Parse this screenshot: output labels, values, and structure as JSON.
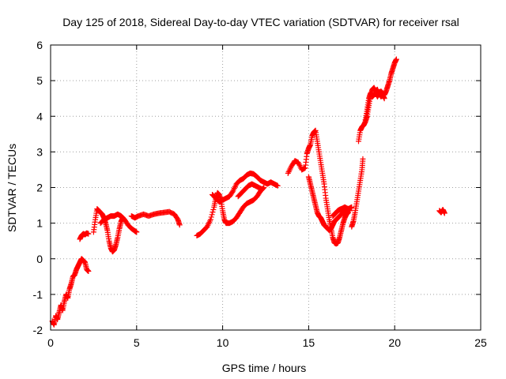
{
  "chart_data": {
    "type": "scatter",
    "title": "Day 125 of 2018, Sidereal Day-to-day VTEC variation (SDTVAR) for receiver rsal",
    "xlabel": "GPS time / hours",
    "ylabel": "SDTVAR / TECUs",
    "xlim": [
      0,
      25
    ],
    "ylim": [
      -2,
      6
    ],
    "xticks": [
      0,
      5,
      10,
      15,
      20,
      25
    ],
    "yticks": [
      -2,
      -1,
      0,
      1,
      2,
      3,
      4,
      5,
      6
    ],
    "grid": true,
    "marker": "+",
    "color": "#ff0000",
    "series": [
      {
        "name": "SDTVAR",
        "segments": [
          [
            [
              0.1,
              -1.75
            ],
            [
              0.2,
              -1.85
            ],
            [
              0.3,
              -1.6
            ],
            [
              0.4,
              -1.7
            ],
            [
              0.5,
              -1.5
            ],
            [
              0.6,
              -1.3
            ],
            [
              0.7,
              -1.45
            ],
            [
              0.8,
              -1.2
            ],
            [
              0.9,
              -1.0
            ],
            [
              1.0,
              -1.1
            ],
            [
              1.1,
              -0.85
            ],
            [
              1.2,
              -0.7
            ],
            [
              1.3,
              -0.5
            ],
            [
              1.4,
              -0.45
            ],
            [
              1.5,
              -0.3
            ],
            [
              1.6,
              -0.2
            ],
            [
              1.7,
              -0.1
            ],
            [
              1.8,
              0.0
            ],
            [
              1.9,
              -0.05
            ],
            [
              2.0,
              -0.1
            ],
            [
              2.1,
              -0.3
            ],
            [
              2.2,
              -0.35
            ]
          ],
          [
            [
              1.7,
              0.55
            ],
            [
              1.8,
              0.65
            ],
            [
              1.9,
              0.7
            ],
            [
              2.0,
              0.68
            ],
            [
              2.1,
              0.72
            ],
            [
              2.2,
              0.7
            ]
          ],
          [
            [
              2.5,
              0.75
            ],
            [
              2.6,
              1.1
            ],
            [
              2.7,
              1.4
            ],
            [
              2.8,
              1.35
            ],
            [
              2.9,
              1.3
            ],
            [
              3.0,
              1.25
            ],
            [
              3.1,
              1.15
            ],
            [
              3.2,
              1.0
            ],
            [
              3.3,
              0.8
            ],
            [
              3.4,
              0.5
            ],
            [
              3.5,
              0.3
            ],
            [
              3.6,
              0.2
            ],
            [
              3.7,
              0.25
            ],
            [
              3.8,
              0.4
            ],
            [
              3.9,
              0.6
            ],
            [
              4.0,
              0.85
            ],
            [
              4.1,
              1.05
            ],
            [
              4.2,
              1.15
            ]
          ],
          [
            [
              2.9,
              1.0
            ],
            [
              3.1,
              1.1
            ],
            [
              3.3,
              1.15
            ],
            [
              3.5,
              1.2
            ],
            [
              3.7,
              1.2
            ],
            [
              3.9,
              1.25
            ],
            [
              4.1,
              1.2
            ],
            [
              4.3,
              1.1
            ],
            [
              4.5,
              0.95
            ],
            [
              4.7,
              0.85
            ],
            [
              4.9,
              0.78
            ],
            [
              5.0,
              0.75
            ]
          ],
          [
            [
              4.7,
              1.2
            ],
            [
              4.9,
              1.15
            ],
            [
              5.1,
              1.2
            ],
            [
              5.4,
              1.25
            ],
            [
              5.7,
              1.2
            ],
            [
              6.0,
              1.25
            ],
            [
              6.3,
              1.28
            ],
            [
              6.6,
              1.3
            ],
            [
              6.9,
              1.32
            ],
            [
              7.2,
              1.25
            ],
            [
              7.4,
              1.1
            ],
            [
              7.5,
              0.95
            ]
          ],
          [
            [
              8.5,
              0.65
            ],
            [
              8.7,
              0.7
            ],
            [
              8.9,
              0.8
            ],
            [
              9.1,
              0.9
            ],
            [
              9.3,
              1.1
            ],
            [
              9.5,
              1.45
            ],
            [
              9.6,
              1.7
            ],
            [
              9.7,
              1.85
            ],
            [
              9.8,
              1.8
            ],
            [
              9.9,
              1.65
            ],
            [
              10.0,
              1.35
            ],
            [
              10.1,
              1.1
            ],
            [
              10.2,
              1.0
            ],
            [
              10.4,
              1.0
            ],
            [
              10.6,
              1.05
            ],
            [
              10.8,
              1.15
            ],
            [
              11.0,
              1.3
            ],
            [
              11.2,
              1.45
            ],
            [
              11.4,
              1.55
            ],
            [
              11.6,
              1.6
            ],
            [
              11.8,
              1.65
            ],
            [
              12.0,
              1.75
            ],
            [
              12.2,
              1.9
            ],
            [
              12.4,
              2.0
            ]
          ],
          [
            [
              9.4,
              1.8
            ],
            [
              9.6,
              1.7
            ],
            [
              9.8,
              1.6
            ],
            [
              10.0,
              1.65
            ],
            [
              10.2,
              1.7
            ],
            [
              10.4,
              1.75
            ],
            [
              10.6,
              1.9
            ],
            [
              10.8,
              2.1
            ],
            [
              11.0,
              2.2
            ],
            [
              11.2,
              2.25
            ],
            [
              11.4,
              2.35
            ],
            [
              11.6,
              2.4
            ],
            [
              11.8,
              2.38
            ],
            [
              12.0,
              2.3
            ],
            [
              12.2,
              2.2
            ],
            [
              12.4,
              2.15
            ],
            [
              12.6,
              2.1
            ],
            [
              12.8,
              2.15
            ],
            [
              13.0,
              2.1
            ],
            [
              13.2,
              2.05
            ]
          ],
          [
            [
              10.9,
              1.75
            ],
            [
              11.1,
              1.85
            ],
            [
              11.3,
              1.95
            ],
            [
              11.5,
              2.05
            ],
            [
              11.7,
              2.1
            ],
            [
              11.9,
              2.05
            ],
            [
              12.1,
              2.0
            ],
            [
              12.3,
              1.95
            ]
          ],
          [
            [
              13.8,
              2.4
            ],
            [
              14.0,
              2.6
            ],
            [
              14.2,
              2.75
            ],
            [
              14.4,
              2.7
            ],
            [
              14.6,
              2.5
            ],
            [
              14.8,
              2.55
            ],
            [
              14.9,
              2.95
            ],
            [
              15.0,
              3.1
            ],
            [
              15.1,
              3.2
            ],
            [
              15.2,
              3.45
            ],
            [
              15.3,
              3.55
            ],
            [
              15.4,
              3.6
            ],
            [
              15.5,
              3.3
            ],
            [
              15.6,
              3.0
            ],
            [
              15.7,
              2.7
            ],
            [
              15.8,
              2.4
            ],
            [
              15.9,
              2.1
            ],
            [
              16.0,
              1.7
            ],
            [
              16.1,
              1.4
            ],
            [
              16.2,
              1.1
            ],
            [
              16.3,
              0.85
            ],
            [
              16.4,
              0.6
            ],
            [
              16.5,
              0.45
            ],
            [
              16.6,
              0.42
            ],
            [
              16.7,
              0.45
            ],
            [
              16.8,
              0.6
            ],
            [
              16.9,
              0.8
            ],
            [
              17.0,
              1.0
            ],
            [
              17.1,
              1.15
            ],
            [
              17.2,
              1.25
            ],
            [
              17.3,
              1.3
            ]
          ],
          [
            [
              15.0,
              2.3
            ],
            [
              15.1,
              2.1
            ],
            [
              15.2,
              1.9
            ],
            [
              15.3,
              1.7
            ],
            [
              15.4,
              1.5
            ],
            [
              15.5,
              1.3
            ],
            [
              15.6,
              1.2
            ],
            [
              15.7,
              1.15
            ],
            [
              15.8,
              1.05
            ],
            [
              15.9,
              0.95
            ],
            [
              16.0,
              0.9
            ],
            [
              16.1,
              0.85
            ],
            [
              16.2,
              0.8
            ],
            [
              16.3,
              0.85
            ],
            [
              16.4,
              0.95
            ],
            [
              16.5,
              1.05
            ],
            [
              16.6,
              1.1
            ],
            [
              16.7,
              1.15
            ],
            [
              16.8,
              1.2
            ],
            [
              16.9,
              1.25
            ],
            [
              17.0,
              1.3
            ],
            [
              17.1,
              1.35
            ],
            [
              17.2,
              1.4
            ],
            [
              17.3,
              1.38
            ],
            [
              17.4,
              1.35
            ]
          ],
          [
            [
              16.4,
              1.2
            ],
            [
              16.5,
              1.25
            ],
            [
              16.6,
              1.3
            ],
            [
              16.7,
              1.35
            ],
            [
              16.8,
              1.38
            ],
            [
              16.9,
              1.4
            ],
            [
              17.0,
              1.42
            ],
            [
              17.1,
              1.45
            ],
            [
              17.2,
              1.42
            ],
            [
              17.3,
              1.4
            ],
            [
              17.4,
              1.42
            ],
            [
              17.5,
              1.45
            ]
          ],
          [
            [
              17.5,
              0.9
            ],
            [
              17.6,
              1.05
            ],
            [
              17.7,
              1.3
            ],
            [
              17.8,
              1.6
            ],
            [
              17.9,
              1.9
            ],
            [
              18.0,
              2.2
            ],
            [
              18.1,
              2.5
            ],
            [
              18.15,
              2.8
            ]
          ],
          [
            [
              17.9,
              3.3
            ],
            [
              18.0,
              3.6
            ],
            [
              18.1,
              3.7
            ],
            [
              18.2,
              3.75
            ],
            [
              18.3,
              3.85
            ],
            [
              18.4,
              4.0
            ],
            [
              18.5,
              4.3
            ],
            [
              18.6,
              4.6
            ],
            [
              18.7,
              4.75
            ],
            [
              18.8,
              4.8
            ],
            [
              18.9,
              4.7
            ],
            [
              19.0,
              4.75
            ],
            [
              19.1,
              4.6
            ],
            [
              19.2,
              4.7
            ],
            [
              19.3,
              4.65
            ],
            [
              19.4,
              4.6
            ],
            [
              19.5,
              4.7
            ],
            [
              19.6,
              4.85
            ],
            [
              19.7,
              5.0
            ],
            [
              19.8,
              5.2
            ],
            [
              19.9,
              5.35
            ],
            [
              20.0,
              5.5
            ],
            [
              20.1,
              5.6
            ]
          ],
          [
            [
              18.3,
              3.9
            ],
            [
              18.4,
              4.2
            ],
            [
              18.5,
              4.5
            ],
            [
              18.6,
              4.65
            ],
            [
              18.7,
              4.55
            ],
            [
              18.8,
              4.6
            ],
            [
              18.9,
              4.65
            ],
            [
              19.0,
              4.55
            ],
            [
              19.1,
              4.65
            ],
            [
              19.2,
              4.55
            ],
            [
              19.3,
              4.6
            ],
            [
              19.4,
              4.5
            ]
          ],
          [
            [
              22.6,
              1.35
            ],
            [
              22.7,
              1.3
            ],
            [
              22.8,
              1.38
            ],
            [
              22.9,
              1.28
            ]
          ]
        ]
      }
    ]
  }
}
